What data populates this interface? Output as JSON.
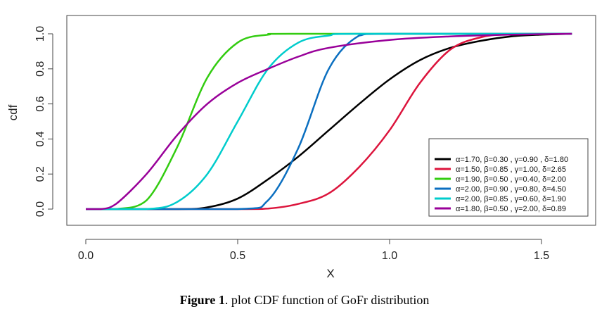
{
  "chart_data": {
    "type": "line",
    "xlabel": "X",
    "ylabel": "cdf",
    "xlim": [
      -0.06,
      1.68
    ],
    "ylim": [
      -0.1,
      1.1
    ],
    "xticks": [
      "0.0",
      "0.5",
      "1.0",
      "1.5"
    ],
    "yticks": [
      "0.0",
      "0.2",
      "0.4",
      "0.6",
      "0.8",
      "1.0"
    ],
    "grid": false,
    "legend_placement": "bottom-right",
    "series": [
      {
        "name": "α=1.70, β=0.30 , γ=0.90 , δ=1.80",
        "color": "#000000",
        "x": [
          0,
          0.3,
          0.4,
          0.5,
          0.6,
          0.7,
          0.8,
          0.9,
          1.0,
          1.1,
          1.2,
          1.3,
          1.4,
          1.5,
          1.6
        ],
        "y": [
          0,
          0,
          0.01,
          0.06,
          0.17,
          0.3,
          0.45,
          0.6,
          0.74,
          0.85,
          0.92,
          0.96,
          0.985,
          0.995,
          1
        ]
      },
      {
        "name": "α=1.50, β=0.85 , γ=1.00, δ=2.65",
        "color": "#dc143c",
        "x": [
          0,
          0.5,
          0.6,
          0.7,
          0.8,
          0.9,
          1.0,
          1.1,
          1.2,
          1.3,
          1.4,
          1.6
        ],
        "y": [
          0,
          0,
          0.003,
          0.03,
          0.09,
          0.24,
          0.45,
          0.72,
          0.91,
          0.98,
          0.997,
          1
        ]
      },
      {
        "name": "α=1.90, β=0.50 , γ=0.40, δ=2.00",
        "color": "#33cc11",
        "x": [
          0,
          0.1,
          0.2,
          0.3,
          0.4,
          0.5,
          0.6,
          0.7,
          1.6
        ],
        "y": [
          0,
          0,
          0.05,
          0.35,
          0.75,
          0.95,
          0.995,
          1,
          1
        ]
      },
      {
        "name": "α=2.00, β=0.90 , γ=0.80, δ=4.50",
        "color": "#0b6fc0",
        "x": [
          0,
          0.5,
          0.6,
          0.7,
          0.8,
          0.9,
          1.0,
          1.6
        ],
        "y": [
          0,
          0,
          0.05,
          0.35,
          0.8,
          0.99,
          1,
          1
        ]
      },
      {
        "name": "α=2.00, β=0.85 , γ=0.60, δ=1.90",
        "color": "#00cccc",
        "x": [
          0,
          0.2,
          0.3,
          0.4,
          0.5,
          0.6,
          0.7,
          0.8,
          0.9,
          1.6
        ],
        "y": [
          0,
          0,
          0.04,
          0.2,
          0.5,
          0.8,
          0.95,
          0.99,
          1,
          1
        ]
      },
      {
        "name": "α=1.80, β=0.50 , γ=2.00, δ=0.89",
        "color": "#990099",
        "x": [
          0,
          0.05,
          0.1,
          0.2,
          0.3,
          0.4,
          0.5,
          0.6,
          0.7,
          0.8,
          1.0,
          1.2,
          1.4,
          1.6
        ],
        "y": [
          0,
          0,
          0.03,
          0.2,
          0.42,
          0.6,
          0.72,
          0.8,
          0.87,
          0.92,
          0.965,
          0.985,
          0.995,
          1
        ]
      }
    ]
  },
  "caption": {
    "label": "Figure 1",
    "text": ". plot CDF function of GoFr distribution"
  }
}
